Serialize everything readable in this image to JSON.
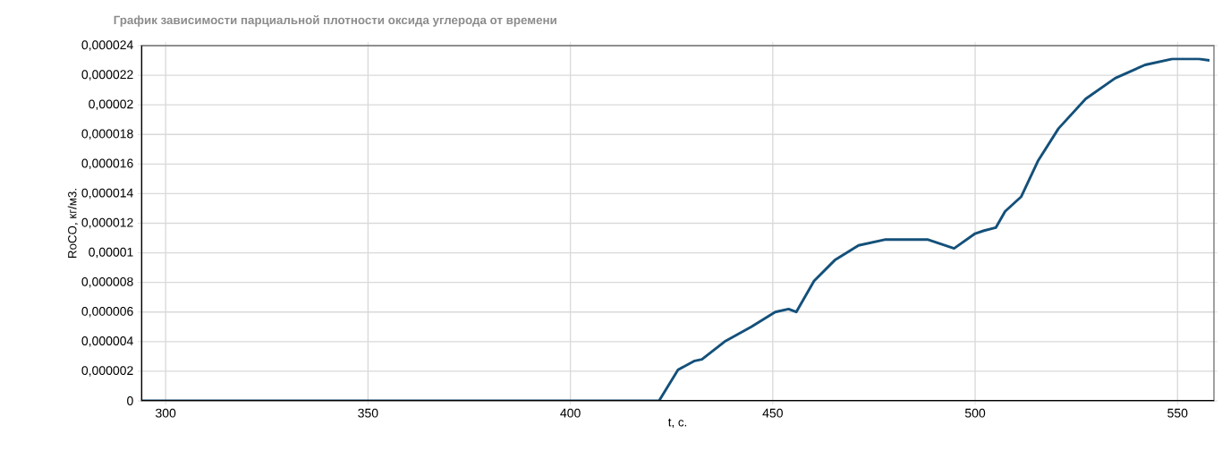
{
  "chart_data": {
    "type": "line",
    "title": "График зависимости парциальной плотности оксида углерода от времени",
    "xlabel": "t, с.",
    "ylabel": "RoCO, кг/м3.",
    "x": [
      294,
      421.9,
      426.6,
      430.7,
      432.5,
      438.1,
      444.7,
      450.6,
      453.9,
      455.8,
      460.2,
      465.3,
      471.2,
      477.9,
      488.2,
      494.8,
      500,
      502.2,
      505.1,
      507.4,
      511.4,
      515.5,
      520.6,
      527.3,
      534.6,
      542,
      548.7,
      555.3,
      557.9
    ],
    "values": [
      0,
      0,
      2.1e-06,
      2.7e-06,
      2.8e-06,
      4e-06,
      5e-06,
      6e-06,
      6.2e-06,
      6e-06,
      8.1e-06,
      9.5e-06,
      1.05e-05,
      1.09e-05,
      1.09e-05,
      1.03e-05,
      1.13e-05,
      1.15e-05,
      1.17e-05,
      1.28e-05,
      1.38e-05,
      1.62e-05,
      1.84e-05,
      2.04e-05,
      2.18e-05,
      2.27e-05,
      2.31e-05,
      2.31e-05,
      2.3e-05
    ],
    "color": "#14507a",
    "xlim": [
      294,
      559
    ],
    "ylim": [
      0,
      2.4e-05
    ],
    "xticks": [
      300,
      350,
      400,
      450,
      500,
      550
    ],
    "yticks": [
      0,
      {
        "value": 2e-06,
        "label": "0,000002"
      },
      {
        "value": 4e-06,
        "label": "0,000004"
      },
      {
        "value": 6e-06,
        "label": "0,000006"
      },
      {
        "value": 8e-06,
        "label": "0,000008"
      },
      {
        "value": 1e-05,
        "label": "0,00001"
      },
      {
        "value": 1.2e-05,
        "label": "0,000012"
      },
      {
        "value": 1.4e-05,
        "label": "0,000014"
      },
      {
        "value": 1.6e-05,
        "label": "0,000016"
      },
      {
        "value": 1.8e-05,
        "label": "0,000018"
      },
      {
        "value": 2e-05,
        "label": "0,00002"
      },
      {
        "value": 2.2e-05,
        "label": "0,000022"
      },
      {
        "value": 2.4e-05,
        "label": "0,000024"
      }
    ],
    "grid": true
  }
}
